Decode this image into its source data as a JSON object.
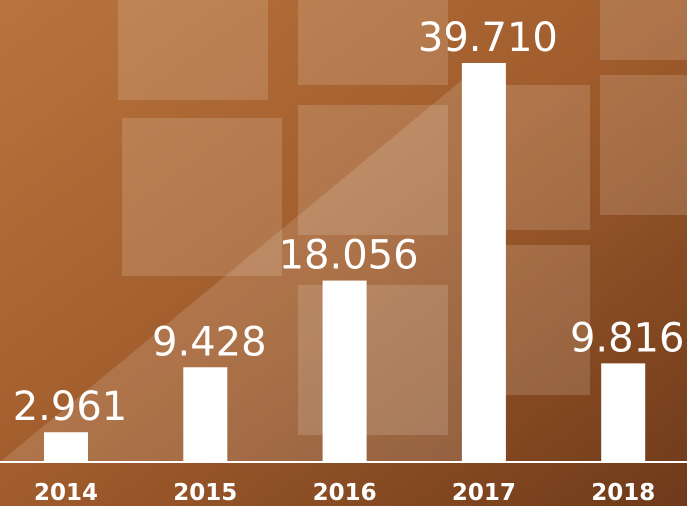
{
  "chart_data": {
    "type": "bar",
    "categories": [
      "2014",
      "2015",
      "2016",
      "2017",
      "2018"
    ],
    "values": [
      2961,
      9428,
      18056,
      39710,
      9816
    ],
    "value_labels": [
      "2.961",
      "9.428",
      "18.056",
      "39.710",
      "9.816"
    ],
    "color": "#ffffff"
  }
}
